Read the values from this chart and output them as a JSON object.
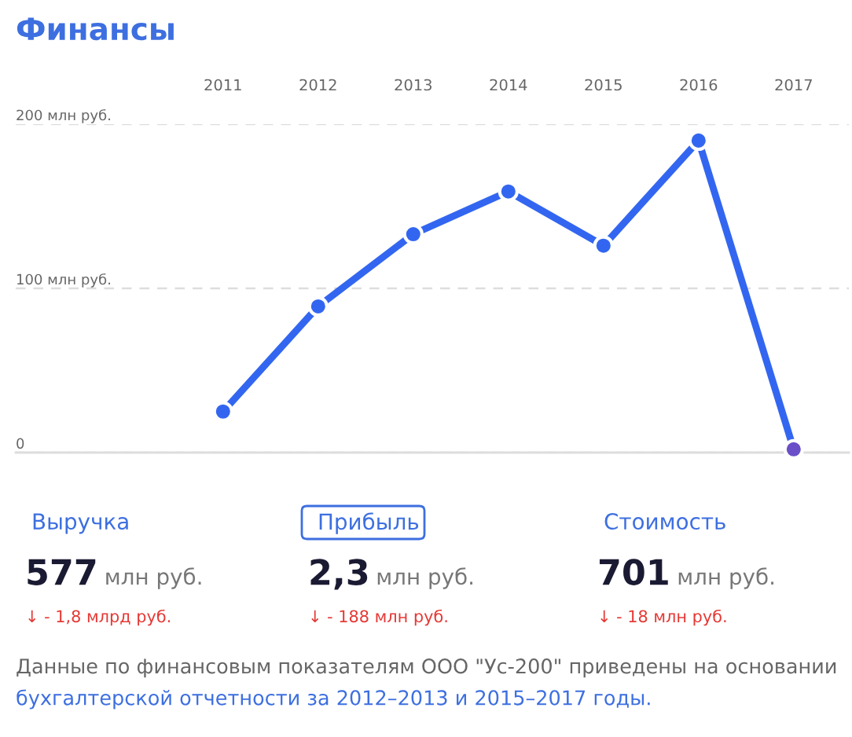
{
  "chart_data": [
    {
      "type": "line",
      "title": "Финансы",
      "categories": [
        "2011",
        "2012",
        "2013",
        "2014",
        "2015",
        "2016",
        "2017"
      ],
      "series": [
        {
          "color": "#3366f0",
          "values": [
            25,
            89,
            133,
            159,
            126,
            190,
            2
          ],
          "colors": [
            "#3366f0",
            "#3366f0",
            "#3366f0",
            "#3366f0",
            "#3366f0",
            "#3366f0",
            "#6a4fc8"
          ]
        }
      ],
      "ylim": [
        0,
        200
      ],
      "yticks": [
        {
          "value": 0,
          "label": "0"
        },
        {
          "value": 100,
          "label": "100 млн руб."
        },
        {
          "value": 200,
          "label": "200 млн руб."
        }
      ],
      "grid": "y",
      "marker": "circle",
      "line_style": "solid"
    },
    {
      "type": "other",
      "annotations": [
        "Выручка",
        "Прибыль",
        "Стоимость",
        "577 млн руб.",
        "2,3 млн руб.",
        "701 млн руб.",
        "↓ - 1,8 млрд руб.",
        "↓ - 188 млн руб.",
        "↓ - 18 млн руб.",
        "Данные по финансовым показателям ООО \"Ус-200\" приведены на основании",
        "бухгалтерской отчетности за 2012–2013 и 2015–2017 годы."
      ]
    }
  ]
}
